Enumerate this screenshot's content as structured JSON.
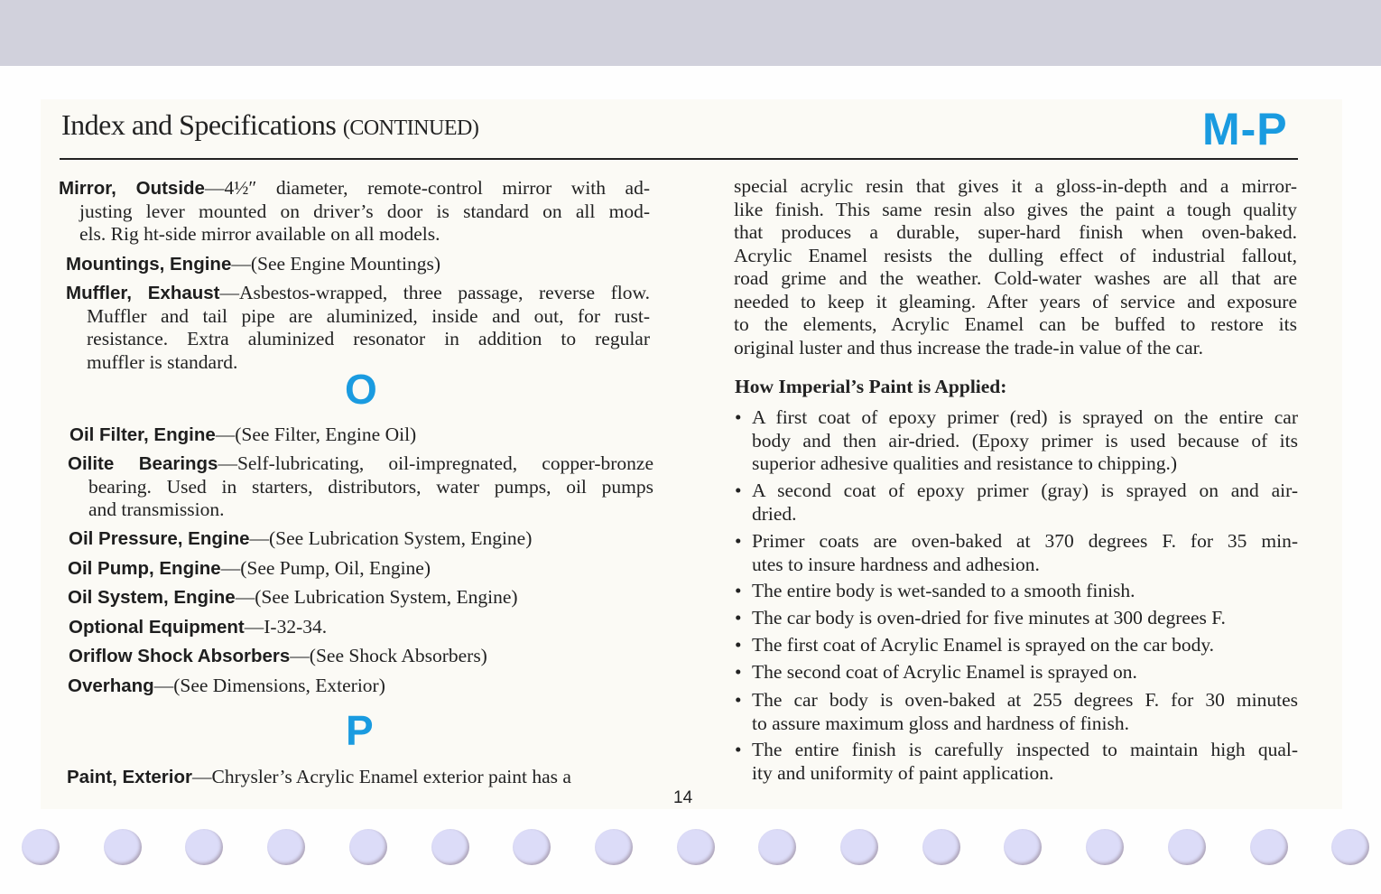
{
  "header": {
    "title": "Index and Specifications",
    "title_suffix": "(CONTINUED)",
    "letters": "M-P"
  },
  "left_entries": [
    {
      "term": "Mirror, Outside",
      "lines": [
        "—4½″ diameter, remote-control mirror with ad-",
        "justing lever mounted on driver’s door is standard on all mod-",
        "els. Rig ht-side mirror available on all models."
      ]
    },
    {
      "term": "Mountings, Engine",
      "lines": [
        "—(See Engine Mountings)"
      ]
    },
    {
      "term": "Muffler, Exhaust",
      "lines": [
        "—Asbestos-wrapped, three passage, reverse flow.",
        "Muffler and tail pipe are aluminized, inside and out, for rust-",
        "resistance. Extra aluminized resonator in addition to regular",
        "muffler is standard."
      ]
    },
    {
      "term": "Oil Filter, Engine",
      "lines": [
        "—(See Filter, Engine Oil)"
      ]
    },
    {
      "term": "Oilite Bearings",
      "lines": [
        "—Self-lubricating, oil-impregnated, copper-bronze",
        "bearing. Used in starters, distributors, water pumps, oil pumps",
        "and transmission."
      ]
    },
    {
      "term": "Oil Pressure, Engine",
      "lines": [
        "—(See Lubrication System, Engine)"
      ]
    },
    {
      "term": "Oil Pump, Engine",
      "lines": [
        "—(See Pump, Oil, Engine)"
      ]
    },
    {
      "term": "Oil System, Engine",
      "lines": [
        "—(See Lubrication System, Engine)"
      ]
    },
    {
      "term": "Optional Equipment",
      "lines": [
        "—I-32-34."
      ]
    },
    {
      "term": "Oriflow Shock Absorbers",
      "lines": [
        "—(See Shock Absorbers)"
      ]
    },
    {
      "term": "Overhang",
      "lines": [
        "—(See Dimensions, Exterior)"
      ]
    },
    {
      "term": "Paint, Exterior",
      "lines": [
        "—Chrysler’s Acrylic Enamel exterior paint has a"
      ]
    }
  ],
  "section_letters": {
    "o": "O",
    "p": "P"
  },
  "right_paragraph": [
    "special acrylic resin that gives it a gloss-in-depth and a mirror-",
    "like finish. This same resin also gives the paint a tough quality",
    "that produces a durable, super-hard finish when oven-baked.",
    "Acrylic Enamel resists the dulling effect of industrial fallout,",
    "road grime and the weather. Cold-water washes are all that are",
    "needed to keep it gleaming. After years of service and exposure",
    "to the elements, Acrylic Enamel can be buffed to restore its",
    "original luster and thus increase the trade-in value of the car."
  ],
  "paint_heading": "How Imperial’s Paint is Applied:",
  "bullet_glyph": "•",
  "bullets": [
    [
      "A first coat of epoxy primer (red) is sprayed on the entire car",
      "body and then air-dried. (Epoxy primer is used because of its",
      "superior adhesive qualities and resistance to chipping.)"
    ],
    [
      "A second coat of epoxy primer (gray) is sprayed on and air-",
      "dried."
    ],
    [
      "Primer coats are oven-baked at 370 degrees F. for 35 min-",
      "utes to insure hardness and adhesion."
    ],
    [
      "The entire body is wet-sanded to a smooth finish."
    ],
    [
      "The car body is oven-dried for five minutes at 300 degrees F."
    ],
    [
      "The first coat of Acrylic Enamel is sprayed on the car body."
    ],
    [
      "The second coat of Acrylic Enamel is sprayed on."
    ],
    [
      "The car body is oven-baked at 255 degrees F. for 30 minutes",
      "to assure maximum gloss and hardness of finish."
    ],
    [
      "The entire finish is carefully inspected to maintain high qual-",
      "ity and uniformity of paint application."
    ]
  ],
  "page_number": "14",
  "colors": {
    "accent": "#1a9be0",
    "top_band": "#d1d1dc",
    "hole": "#dcdcf8"
  }
}
